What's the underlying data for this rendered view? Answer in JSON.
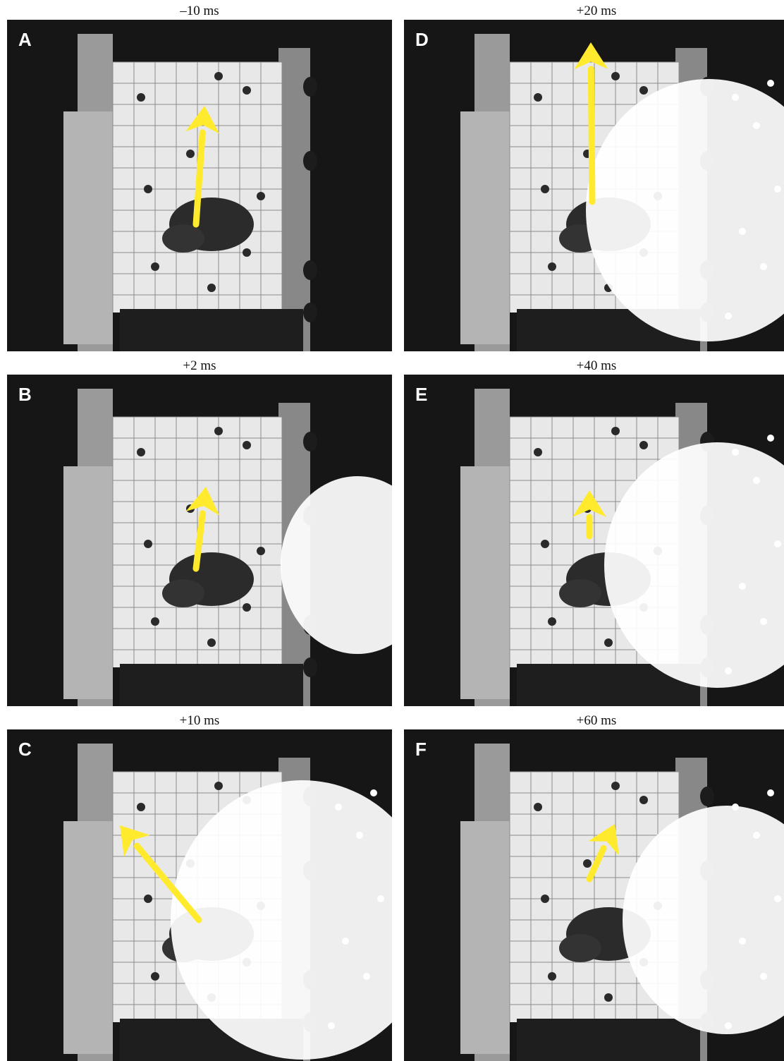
{
  "panels": [
    {
      "letter": "A",
      "time": "–10 ms",
      "arrow": [
        278,
        318,
        290,
        150
      ],
      "sparks": 0,
      "plume": 0
    },
    {
      "letter": "B",
      "time": "+2 ms",
      "arrow": [
        278,
        806,
        292,
        690
      ],
      "sparks": 0,
      "plume": 0.3
    },
    {
      "letter": "C",
      "time": "+10 ms",
      "arrow": [
        282,
        1304,
        170,
        1170
      ],
      "sparks": 1,
      "plume": 0.9
    },
    {
      "letter": "D",
      "time": "+20 ms",
      "arrow": [
        840,
        286,
        838,
        60
      ],
      "sparks": 1,
      "plume": 0.8
    },
    {
      "letter": "E",
      "time": "+40 ms",
      "arrow": [
        836,
        760,
        836,
        695
      ],
      "sparks": 1,
      "plume": 0.7
    },
    {
      "letter": "F",
      "time": "+60 ms",
      "arrow": [
        836,
        1246,
        872,
        1168
      ],
      "sparks": 1,
      "plume": 0.6
    }
  ],
  "colors": {
    "arrow": "#ffea2e",
    "background": "#161616",
    "panel": "#e8e8e8"
  }
}
